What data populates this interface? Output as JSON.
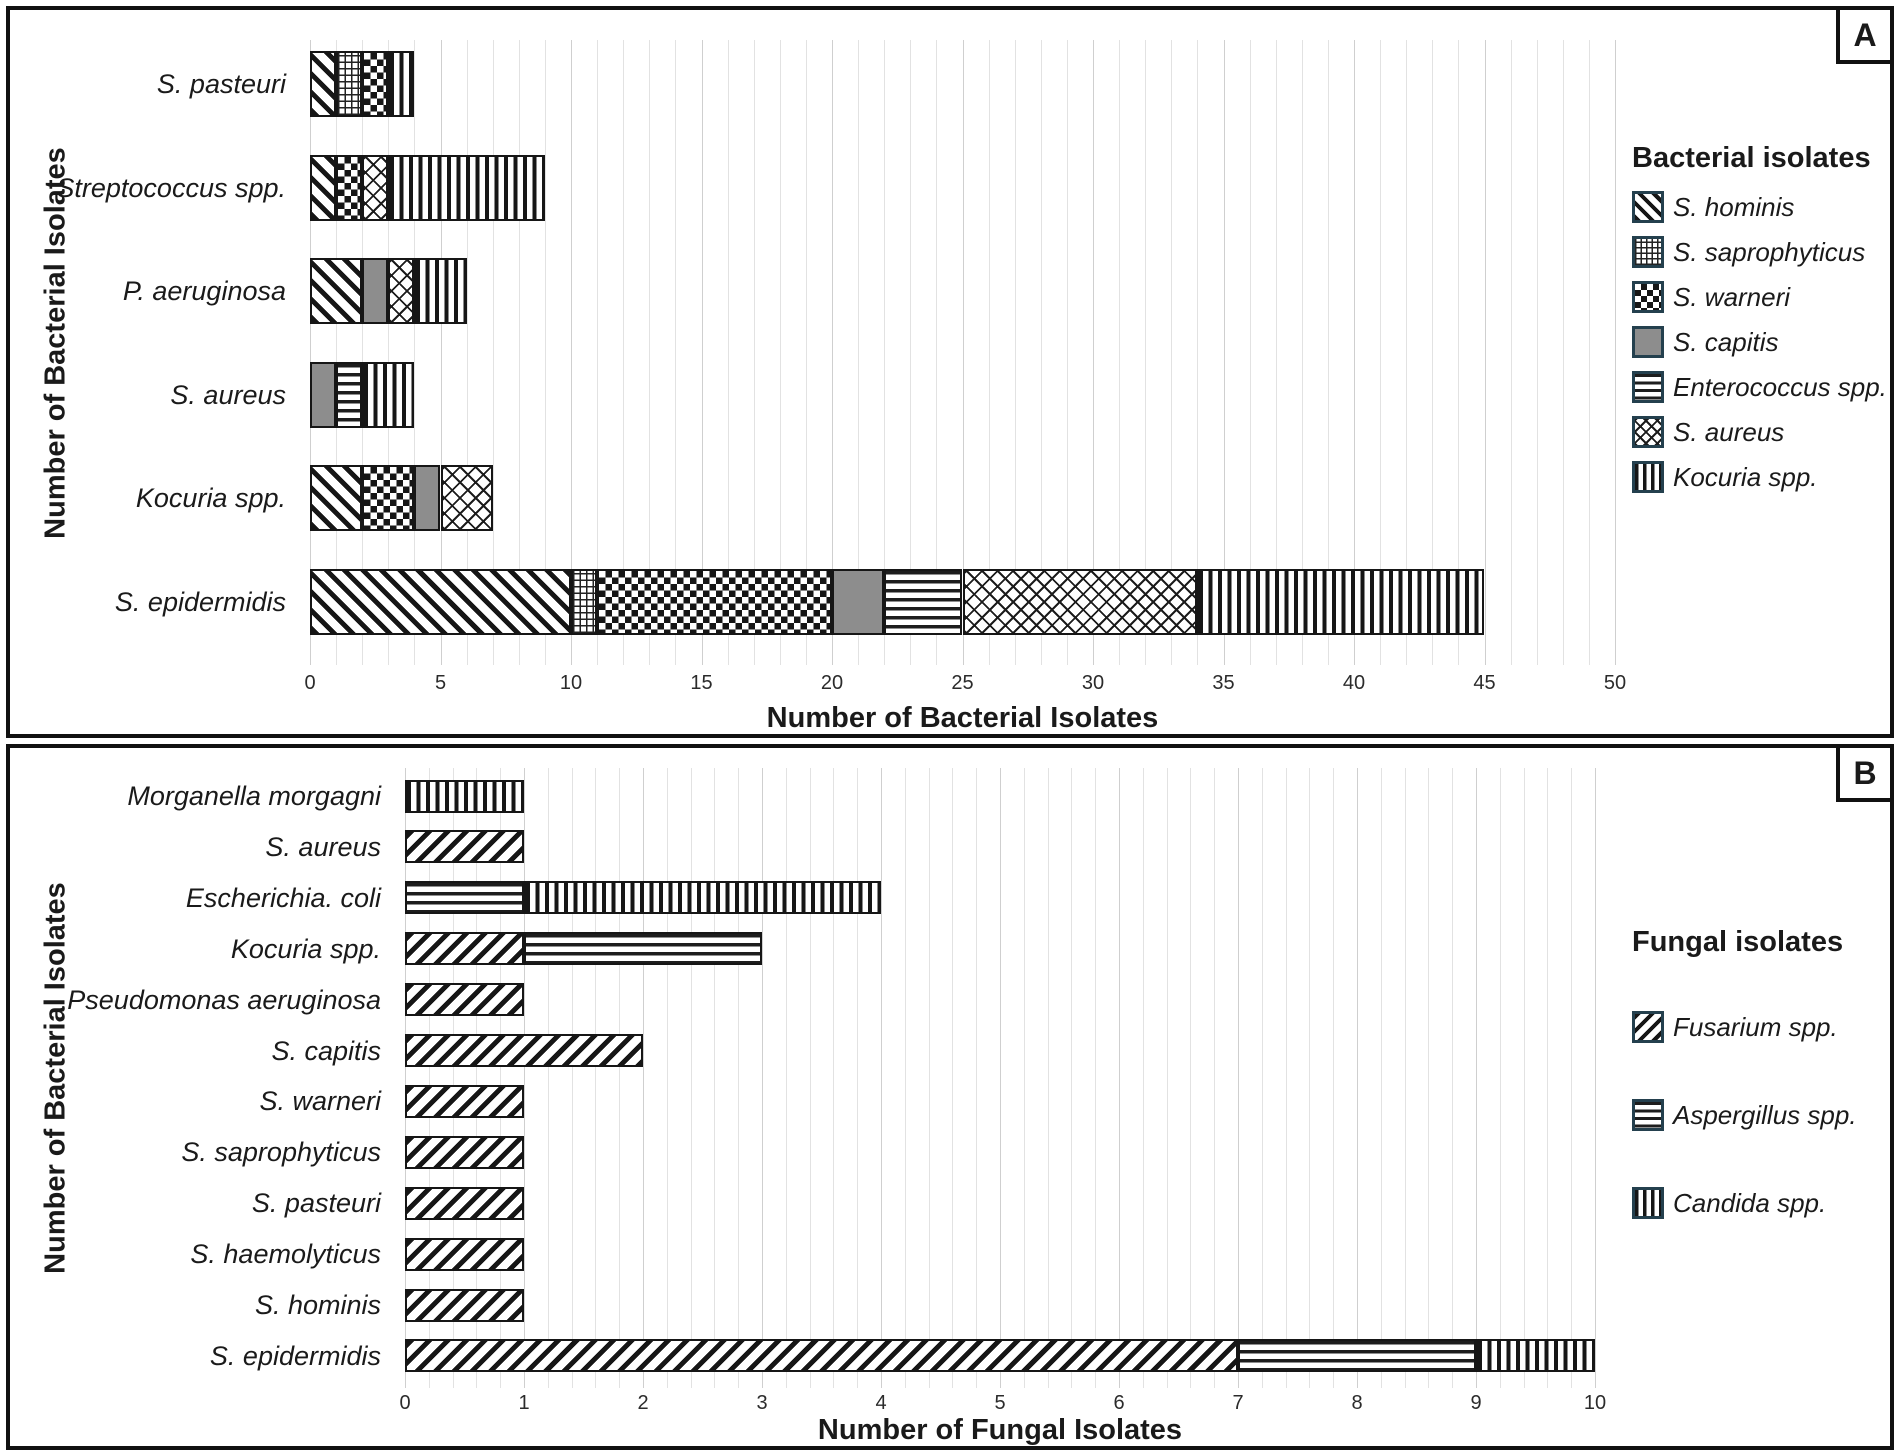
{
  "figure": {
    "background": "#ffffff",
    "panel_border_color": "#111111",
    "gridline_color": "#dcdcdc",
    "pattern_ink_color": "#161616",
    "solid_gray_color": "#8d8d8d",
    "legend_swatch_border_color": "#24404e"
  },
  "chart_data": [
    {
      "type": "bar",
      "orientation": "horizontal",
      "stacked": true,
      "panel_label": "A",
      "xlabel": "Number of Bacterial Isolates",
      "ylabel": "Number of Bacterial Isolates",
      "legend_title": "Bacterial isolates",
      "legend_position": "right",
      "grid": true,
      "xlim": [
        0,
        50
      ],
      "xticks": [
        0,
        5,
        10,
        15,
        20,
        25,
        30,
        35,
        40,
        45,
        50
      ],
      "minor_grid_step": 1,
      "categories": [
        "S. pasteuri",
        "Streptococcus spp.",
        "P. aeruginosa",
        "S. aureus",
        "Kocuria spp.",
        "S. epidermidis"
      ],
      "series": [
        {
          "name": "S. hominis",
          "pattern": "diagonal-down",
          "values": [
            1,
            1,
            2,
            0,
            2,
            10
          ]
        },
        {
          "name": "S. saprophyticus",
          "pattern": "grid",
          "values": [
            1,
            0,
            0,
            0,
            0,
            1
          ]
        },
        {
          "name": "S. warneri",
          "pattern": "checker",
          "values": [
            1,
            1,
            0,
            0,
            2,
            9
          ]
        },
        {
          "name": "S. capitis",
          "pattern": "solid-gray",
          "values": [
            0,
            0,
            1,
            1,
            1,
            2
          ]
        },
        {
          "name": "Enterococcus spp.",
          "pattern": "horizontal-lines",
          "values": [
            0,
            0,
            0,
            1,
            0,
            3
          ]
        },
        {
          "name": "S. aureus",
          "pattern": "diagonal-weave",
          "values": [
            0,
            1,
            1,
            0,
            2,
            9
          ]
        },
        {
          "name": "Kocuria spp.",
          "pattern": "vertical-lines",
          "values": [
            1,
            6,
            2,
            2,
            0,
            11
          ]
        }
      ],
      "totals": [
        4,
        9,
        6,
        4,
        7,
        45
      ]
    },
    {
      "type": "bar",
      "orientation": "horizontal",
      "stacked": true,
      "panel_label": "B",
      "xlabel": "Number of Fungal Isolates",
      "ylabel": "Number of Bacterial Isolates",
      "legend_title": "Fungal isolates",
      "legend_position": "right",
      "grid": true,
      "xlim": [
        0,
        10
      ],
      "xticks": [
        0,
        1,
        2,
        3,
        4,
        5,
        6,
        7,
        8,
        9,
        10
      ],
      "minor_grid_step": 0.2,
      "categories": [
        "Morganella morgagni",
        "S. aureus",
        "Escherichia. coli",
        "Kocuria spp.",
        "Pseudomonas aeruginosa",
        "S. capitis",
        "S. warneri",
        "S. saprophyticus",
        "S. pasteuri",
        "S. haemolyticus",
        "S. hominis",
        "S. epidermidis"
      ],
      "series": [
        {
          "name": "Fusarium spp.",
          "pattern": "diagonal-up",
          "values": [
            0,
            1,
            0,
            1,
            1,
            2,
            1,
            1,
            1,
            1,
            1,
            7
          ]
        },
        {
          "name": "Aspergillus spp.",
          "pattern": "horizontal-lines",
          "values": [
            0,
            0,
            1,
            2,
            0,
            0,
            0,
            0,
            0,
            0,
            0,
            2
          ]
        },
        {
          "name": "Candida spp.",
          "pattern": "vertical-lines",
          "values": [
            1,
            0,
            3,
            0,
            0,
            0,
            0,
            0,
            0,
            0,
            0,
            1
          ]
        }
      ],
      "totals": [
        1,
        1,
        4,
        3,
        1,
        2,
        1,
        1,
        1,
        1,
        1,
        10
      ]
    }
  ]
}
